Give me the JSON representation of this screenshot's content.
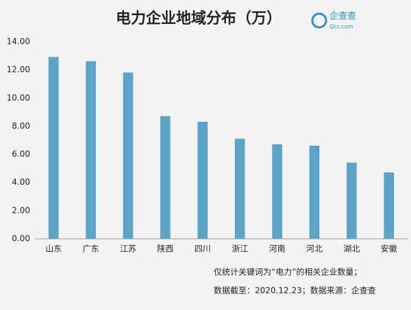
{
  "chart_data": {
    "type": "bar",
    "title": "电力企业地域分布（万）",
    "categories": [
      "山东",
      "广东",
      "江苏",
      "陕西",
      "四川",
      "浙江",
      "河南",
      "河北",
      "湖北",
      "安徽"
    ],
    "values": [
      12.9,
      12.6,
      11.8,
      8.7,
      8.3,
      7.1,
      6.7,
      6.6,
      5.4,
      4.7
    ],
    "color": "#5aa5c9",
    "ylim": [
      0,
      14
    ],
    "yticks": [
      {
        "value": 0,
        "label": "0.00"
      },
      {
        "value": 2,
        "label": "2.00"
      },
      {
        "value": 4,
        "label": "4.00"
      },
      {
        "value": 6,
        "label": "6.00"
      },
      {
        "value": 8,
        "label": "8.00"
      },
      {
        "value": 10,
        "label": "10.00"
      },
      {
        "value": 12,
        "label": "12.00"
      },
      {
        "value": 14,
        "label": "14.00"
      }
    ],
    "grid": false,
    "notes": [
      "仅统计关键词为“电力”的相关企业数量；",
      "数据截至：2020.12.23；数据来源：企查查"
    ]
  },
  "logo": {
    "name": "企查查",
    "site": "Qcc.com"
  }
}
